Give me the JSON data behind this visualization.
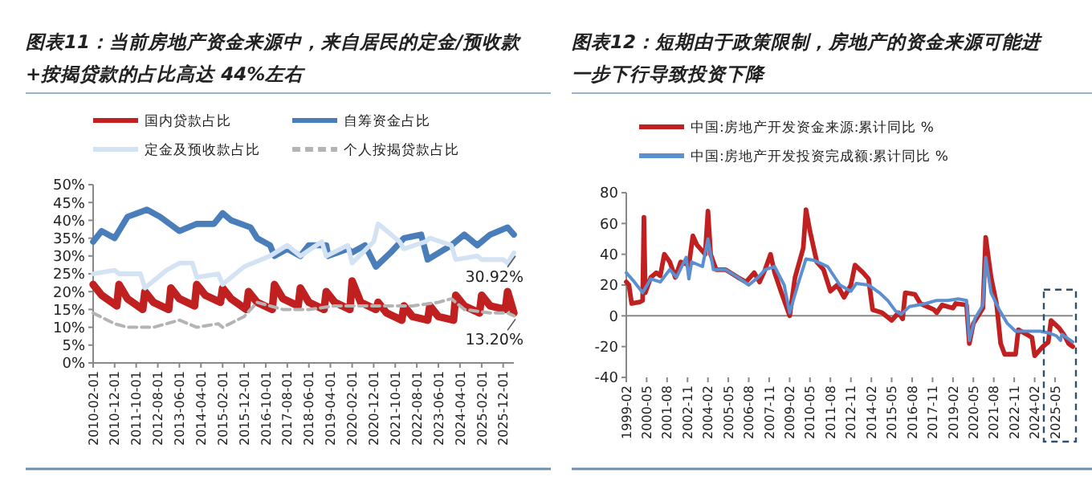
{
  "chart_data": [
    {
      "type": "line",
      "title": "图表11：当前房地产资金来源中，来自居民的定金/预收款+按揭贷款的占比高达 44%左右",
      "legend": "top",
      "ylim": [
        0,
        50
      ],
      "yticks": [
        {
          "value": 0,
          "label": "0%"
        },
        {
          "value": 5,
          "label": "5%"
        },
        {
          "value": 10,
          "label": "10%"
        },
        {
          "value": 15,
          "label": "15%"
        },
        {
          "value": 20,
          "label": "20%"
        },
        {
          "value": 25,
          "label": "25%"
        },
        {
          "value": 30,
          "label": "30%"
        },
        {
          "value": 35,
          "label": "35%"
        },
        {
          "value": 40,
          "label": "40%"
        },
        {
          "value": 45,
          "label": "45%"
        },
        {
          "value": 50,
          "label": "50%"
        }
      ],
      "xlim": [
        "2010-02",
        "2026-05"
      ],
      "xticks": [
        {
          "value": "2010-02",
          "label": "2010-02-01"
        },
        {
          "value": "2010-12",
          "label": "2010-12-01"
        },
        {
          "value": "2011-10",
          "label": "2011-10-01"
        },
        {
          "value": "2012-08",
          "label": "2012-08-01"
        },
        {
          "value": "2013-06",
          "label": "2013-06-01"
        },
        {
          "value": "2014-04",
          "label": "2014-04-01"
        },
        {
          "value": "2015-02",
          "label": "2015-02-01"
        },
        {
          "value": "2015-12",
          "label": "2015-12-01"
        },
        {
          "value": "2016-10",
          "label": "2016-10-01"
        },
        {
          "value": "2017-08",
          "label": "2017-08-01"
        },
        {
          "value": "2018-06",
          "label": "2018-06-01"
        },
        {
          "value": "2019-04",
          "label": "2019-04-01"
        },
        {
          "value": "2020-02",
          "label": "2020-02-01"
        },
        {
          "value": "2020-12",
          "label": "2020-12-01"
        },
        {
          "value": "2021-10",
          "label": "2021-10-01"
        },
        {
          "value": "2022-08",
          "label": "2022-08-01"
        },
        {
          "value": "2023-06",
          "label": "2023-06-01"
        },
        {
          "value": "2024-04",
          "label": "2024-04-01"
        },
        {
          "value": "2025-02",
          "label": "2025-02-01"
        },
        {
          "value": "2025-12",
          "label": "2025-12-01"
        }
      ],
      "annotations": [
        {
          "text": "30.92%",
          "x": "2026-05",
          "y": 30.92
        },
        {
          "text": "13.20%",
          "x": "2026-05",
          "y": 13.2
        }
      ],
      "series": [
        {
          "name": "国内贷款占比",
          "color": "#c0201f",
          "x": [
            "2010-02",
            "2010-06",
            "2011-01",
            "2011-02",
            "2011-06",
            "2012-01",
            "2012-02",
            "2012-06",
            "2013-01",
            "2013-02",
            "2013-06",
            "2014-01",
            "2014-02",
            "2014-06",
            "2015-01",
            "2015-02",
            "2015-06",
            "2016-01",
            "2016-02",
            "2016-06",
            "2017-01",
            "2017-02",
            "2017-06",
            "2018-01",
            "2018-02",
            "2018-06",
            "2019-01",
            "2019-02",
            "2019-06",
            "2020-01",
            "2020-02",
            "2020-06",
            "2021-01",
            "2021-02",
            "2021-06",
            "2022-01",
            "2022-02",
            "2022-06",
            "2023-01",
            "2023-02",
            "2023-06",
            "2024-01",
            "2024-02",
            "2024-06",
            "2025-01",
            "2025-02",
            "2025-06",
            "2026-01",
            "2026-02",
            "2026-05"
          ],
          "values": [
            22,
            19,
            16,
            22,
            18,
            15,
            20,
            17,
            15,
            21,
            18,
            16,
            22,
            19,
            17,
            21,
            18,
            15,
            20,
            17,
            15,
            22,
            18,
            16,
            21,
            17,
            15,
            20,
            17,
            15,
            23,
            17,
            15,
            17,
            14,
            12,
            16,
            13,
            12,
            16,
            13,
            12,
            19,
            16,
            14,
            19,
            16,
            15,
            20,
            14
          ]
        },
        {
          "name": "自筹资金占比",
          "color": "#4a7ebb",
          "x": [
            "2010-02",
            "2010-06",
            "2010-12",
            "2011-06",
            "2012-03",
            "2012-09",
            "2013-06",
            "2014-02",
            "2014-10",
            "2015-02",
            "2015-06",
            "2016-03",
            "2016-06",
            "2016-12",
            "2017-02",
            "2017-08",
            "2018-02",
            "2018-06",
            "2019-02",
            "2019-03",
            "2019-12",
            "2020-02",
            "2020-08",
            "2021-01",
            "2021-08",
            "2022-02",
            "2022-10",
            "2023-01",
            "2023-12",
            "2024-06",
            "2024-12",
            "2025-06",
            "2026-02",
            "2026-05"
          ],
          "values": [
            34,
            37,
            35,
            41,
            43,
            41,
            37,
            39,
            39,
            42,
            40,
            38,
            35,
            33,
            30,
            32,
            30,
            33,
            33,
            30,
            32,
            31,
            33,
            27,
            31,
            35,
            36,
            29,
            33,
            36,
            33,
            36,
            38,
            36
          ]
        },
        {
          "name": "定金及预收款占比",
          "color": "#d3e3f3",
          "x": [
            "2010-02",
            "2010-12",
            "2011-02",
            "2011-12",
            "2012-02",
            "2012-12",
            "2013-06",
            "2013-12",
            "2014-02",
            "2014-12",
            "2015-02",
            "2015-12",
            "2016-12",
            "2017-08",
            "2018-02",
            "2018-12",
            "2019-02",
            "2019-12",
            "2020-02",
            "2020-12",
            "2021-02",
            "2021-12",
            "2022-02",
            "2022-12",
            "2023-02",
            "2023-12",
            "2024-02",
            "2024-12",
            "2025-02",
            "2025-12",
            "2026-02",
            "2026-05"
          ],
          "values": [
            25,
            26,
            25,
            25,
            21,
            26,
            28,
            28,
            24,
            25,
            22,
            27,
            30,
            33,
            30,
            34,
            30,
            33,
            28,
            34,
            39,
            34,
            32,
            34,
            35,
            33,
            29,
            30,
            29,
            29,
            28,
            30.92
          ]
        },
        {
          "name": "个人按揭贷款占比",
          "color": "#b4b4b4",
          "line_style": "dashed",
          "x": [
            "2010-02",
            "2010-12",
            "2011-06",
            "2012-06",
            "2013-06",
            "2014-02",
            "2014-12",
            "2015-02",
            "2015-12",
            "2016-06",
            "2017-06",
            "2018-06",
            "2019-06",
            "2020-06",
            "2021-06",
            "2022-06",
            "2023-06",
            "2023-12",
            "2024-06",
            "2025-06",
            "2026-02",
            "2026-05"
          ],
          "values": [
            14,
            11,
            10,
            10,
            12,
            10,
            11,
            10,
            13,
            17,
            15,
            15,
            16,
            16,
            16,
            16,
            17,
            18,
            15,
            14,
            14,
            13.2
          ]
        }
      ]
    },
    {
      "type": "line",
      "title": "图表12：短期由于政策限制，房地产的资金来源可能进一步下行导致投资下降",
      "legend": "top",
      "ylim": [
        -40,
        80
      ],
      "yticks": [
        -40,
        -20,
        0,
        20,
        40,
        60,
        80
      ],
      "xlim": [
        "1999-02",
        "2026-06"
      ],
      "xticks": [
        {
          "value": "1999-02",
          "label": "1999-02"
        },
        {
          "value": "2000-05",
          "label": "2000-05"
        },
        {
          "value": "2001-08",
          "label": "2001-08"
        },
        {
          "value": "2002-11",
          "label": "2002-11"
        },
        {
          "value": "2004-02",
          "label": "2004-02"
        },
        {
          "value": "2005-05",
          "label": "2005-05"
        },
        {
          "value": "2006-08",
          "label": "2006-08"
        },
        {
          "value": "2007-11",
          "label": "2007-11"
        },
        {
          "value": "2009-02",
          "label": "2009-02"
        },
        {
          "value": "2010-05",
          "label": "2010-05"
        },
        {
          "value": "2011-08",
          "label": "2011-08"
        },
        {
          "value": "2012-11",
          "label": "2012-11"
        },
        {
          "value": "2014-02",
          "label": "2014-02"
        },
        {
          "value": "2015-05",
          "label": "2015-05"
        },
        {
          "value": "2016-08",
          "label": "2016-08"
        },
        {
          "value": "2017-11",
          "label": "2017-11"
        },
        {
          "value": "2019-02",
          "label": "2019-02"
        },
        {
          "value": "2020-05",
          "label": "2020-05"
        },
        {
          "value": "2021-08",
          "label": "2021-08"
        },
        {
          "value": "2022-11",
          "label": "2022-11"
        },
        {
          "value": "2024-02",
          "label": "2024-02"
        },
        {
          "value": "2025-05",
          "label": "2025-05"
        }
      ],
      "series": [
        {
          "name": "中国:房地产开发资金来源:累计同比 %",
          "color": "#c0201f",
          "x": [
            "1999-02",
            "1999-04",
            "1999-06",
            "1999-12",
            "2000-02",
            "2000-03",
            "2000-04",
            "2000-08",
            "2000-12",
            "2001-03",
            "2001-06",
            "2001-10",
            "2002-02",
            "2002-06",
            "2002-12",
            "2003-03",
            "2003-06",
            "2003-12",
            "2004-02",
            "2004-04",
            "2004-08",
            "2005-03",
            "2005-12",
            "2006-06",
            "2006-12",
            "2007-04",
            "2007-08",
            "2007-12",
            "2008-03",
            "2008-08",
            "2009-02",
            "2009-06",
            "2009-12",
            "2010-02",
            "2010-05",
            "2010-10",
            "2011-03",
            "2011-08",
            "2012-01",
            "2012-06",
            "2012-11",
            "2013-02",
            "2013-08",
            "2013-12",
            "2014-03",
            "2014-10",
            "2015-05",
            "2015-10",
            "2016-01",
            "2016-03",
            "2016-10",
            "2017-02",
            "2017-12",
            "2018-02",
            "2018-06",
            "2019-02",
            "2019-04",
            "2019-12",
            "2020-02",
            "2020-05",
            "2020-12",
            "2021-02",
            "2021-06",
            "2021-10",
            "2022-01",
            "2022-04",
            "2022-12",
            "2023-02",
            "2023-08",
            "2023-12",
            "2024-02",
            "2024-08",
            "2024-12",
            "2025-02",
            "2025-08",
            "2025-12",
            "2026-03",
            "2026-06"
          ],
          "values": [
            22,
            20,
            8,
            9,
            10,
            64,
            15,
            25,
            28,
            26,
            40,
            35,
            25,
            35,
            33,
            52,
            46,
            40,
            68,
            40,
            30,
            30,
            25,
            22,
            28,
            22,
            30,
            40,
            28,
            15,
            0,
            25,
            44,
            69,
            55,
            35,
            30,
            16,
            20,
            12,
            20,
            33,
            28,
            24,
            4,
            2,
            -3,
            2,
            -2,
            15,
            14,
            8,
            4,
            2,
            7,
            5,
            8,
            7,
            -18,
            -5,
            5,
            51,
            25,
            8,
            -18,
            -25,
            -25,
            -9,
            -12,
            -14,
            -26,
            -20,
            -17,
            -3,
            -8,
            -13,
            -18,
            -20
          ]
        },
        {
          "name": "中国:房地产开发投资完成额:累计同比 %",
          "color": "#5b8fd0",
          "x": [
            "1999-02",
            "1999-08",
            "2000-02",
            "2000-08",
            "2001-03",
            "2001-10",
            "2002-03",
            "2002-10",
            "2002-12",
            "2003-02",
            "2003-10",
            "2004-02",
            "2004-06",
            "2005-03",
            "2005-12",
            "2006-08",
            "2007-03",
            "2007-08",
            "2008-03",
            "2008-10",
            "2009-02",
            "2009-08",
            "2010-02",
            "2010-08",
            "2011-06",
            "2012-03",
            "2012-11",
            "2013-03",
            "2013-12",
            "2014-08",
            "2015-02",
            "2015-08",
            "2015-12",
            "2016-06",
            "2016-12",
            "2017-06",
            "2018-02",
            "2018-10",
            "2019-06",
            "2019-12",
            "2020-02",
            "2020-06",
            "2020-12",
            "2021-02",
            "2021-06",
            "2021-12",
            "2022-06",
            "2022-12",
            "2023-06",
            "2023-12",
            "2024-06",
            "2024-12",
            "2025-06",
            "2025-09",
            "2025-10",
            "2026-06"
          ],
          "values": [
            28,
            22,
            15,
            24,
            22,
            30,
            25,
            38,
            24,
            35,
            32,
            50,
            30,
            30,
            25,
            20,
            25,
            30,
            32,
            20,
            2,
            20,
            37,
            36,
            32,
            20,
            16,
            21,
            20,
            15,
            10,
            3,
            1,
            6,
            7,
            8,
            10,
            10,
            11,
            10,
            -16,
            -2,
            7,
            38,
            15,
            4,
            -5,
            -10,
            -10,
            -10,
            -10,
            -11,
            -13,
            -16,
            -12,
            -17
          ]
        }
      ]
    }
  ]
}
